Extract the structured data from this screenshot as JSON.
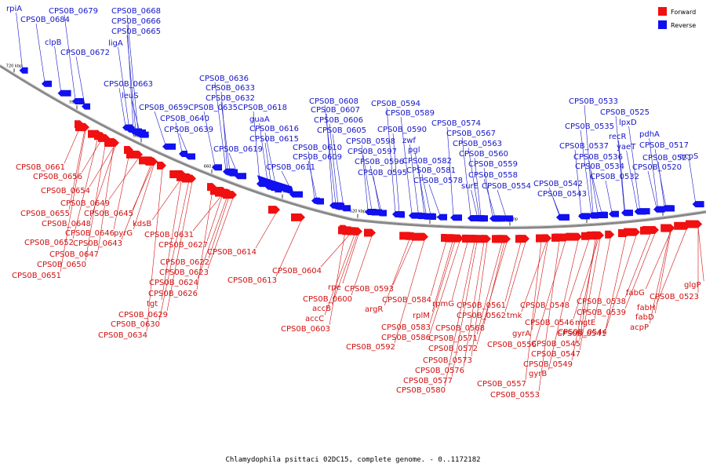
{
  "legend": {
    "forward": {
      "label": "Forward",
      "color": "#f01010"
    },
    "reverse": {
      "label": "Reverse",
      "color": "#1010f0"
    }
  },
  "caption": "Chlamydophila psittaci 02DC15, complete genome. - 0..1172182",
  "ticks": [
    "720 kbp",
    "700 kbp",
    "680 kbp",
    "660 kbp",
    "640 kbp",
    "620 kbp",
    "600 kbp",
    "580 kbp",
    "560 kbp",
    "540 kbp"
  ],
  "reverse_genes": [
    "rpiA",
    "CPS0B_0684",
    "CPS0B_0679",
    "clpB",
    "CPS0B_0672",
    "CPS0B_0668",
    "CPS0B_0666",
    "CPS0B_0665",
    "ligA",
    "CPS0B_0663",
    "leuS",
    "CPS0B_0659",
    "CPS0B_0640",
    "CPS0B_0639",
    "CPS0B_0636",
    "CPS0B_0633",
    "CPS0B_0632",
    "CPS0B_0635",
    "CPS0B_0618",
    "guaA",
    "CPS0B_0616",
    "CPS0B_0615",
    "CPS0B_0619",
    "CPS0B_0611",
    "CPS0B_0610",
    "CPS0B_0609",
    "CPS0B_0608",
    "CPS0B_0607",
    "CPS0B_0606",
    "CPS0B_0605",
    "CPS0B_0598",
    "CPS0B_0597",
    "CPS0B_0596",
    "CPS0B_0595",
    "CPS0B_0594",
    "CPS0B_0589",
    "CPS0B_0590",
    "zwf",
    "pgl",
    "CPS0B_0582",
    "CPS0B_0581",
    "CPS0B_0578",
    "CPS0B_0574",
    "CPS0B_0567",
    "CPS0B_0563",
    "CPS0B_0560",
    "CPS0B_0559",
    "CPS0B_0558",
    "surE",
    "CPS0B_0554",
    "CPS0B_0542",
    "CPS0B_0543",
    "CPS0B_0533",
    "CPS0B_0535",
    "CPS0B_0537",
    "CPS0B_0536",
    "CPS0B_0534",
    "CPS0B_0532",
    "CPS0B_0525",
    "lpxD",
    "recR",
    "pdhA",
    "yaeT",
    "CPS0B_0521",
    "CPS0B_0520",
    "CPS0B_0517",
    "acpS"
  ],
  "forward_genes": [
    "CPS0B_0661",
    "CPS0B_0656",
    "CPS0B_0654",
    "CPS0B_0649",
    "CPS0B_0655",
    "CPS0B_0645",
    "CPS0B_0648",
    "kdsB",
    "CPS0B_0646",
    "pyrG",
    "CPS0B_0652",
    "CPS0B_0643",
    "CPS0B_0647",
    "CPS0B_0650",
    "CPS0B_0651",
    "CPS0B_0631",
    "CPS0B_0627",
    "CPS0B_0622",
    "CPS0B_0623",
    "CPS0B_0624",
    "CPS0B_0626",
    "tgt",
    "CPS0B_0629",
    "CPS0B_0630",
    "CPS0B_0634",
    "CPS0B_0614",
    "CPS0B_0613",
    "CPS0B_0604",
    "rpe",
    "CPS0B_0600",
    "accB",
    "accC",
    "CPS0B_0603",
    "CPS0B_0593",
    "argR",
    "CPS0B_0592",
    "CPS0B_0584",
    "rplM",
    "CPS0B_0583",
    "CPS0B_0586",
    "rpmG",
    "CPS0B_0568",
    "CPS0B_0571",
    "CPS0B_0572",
    "CPS0B_0573",
    "CPS0B_0576",
    "CPS0B_0577",
    "CPS0B_0580",
    "CPS0B_0561",
    "CPS0B_0562",
    "tmk",
    "CPS0B_0556",
    "gyrA",
    "CPS0B_0548",
    "CPS0B_0546",
    "CPS0B_0544",
    "CPS0B_0545",
    "CPS0B_0547",
    "CPS0B_0549",
    "gyrB",
    "CPS0B_0557",
    "CPS0B_0553",
    "CPS0B_0538",
    "CPS0B_0539",
    "mgtE",
    "CPS0B_0541",
    "fabG",
    "fabH",
    "fabD",
    "acpP",
    "CPS0B_0523",
    "glgP"
  ]
}
